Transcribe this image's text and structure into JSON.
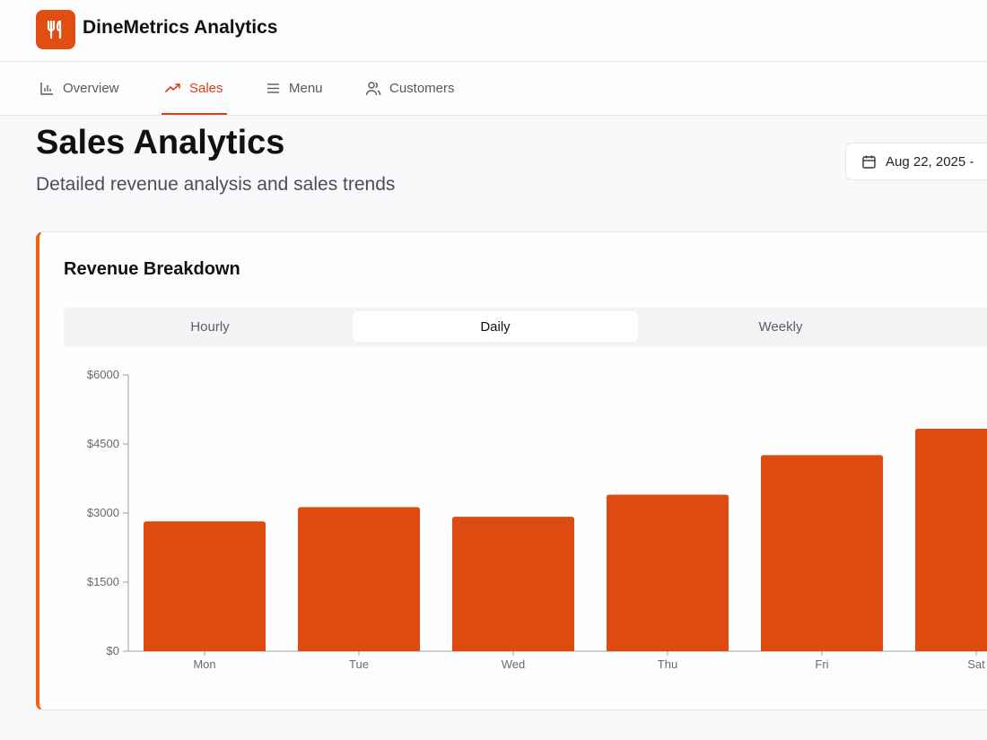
{
  "app": {
    "title": "DineMetrics Analytics",
    "logo_icon": "utensils-icon",
    "brand_color": "#e04e12"
  },
  "nav": {
    "items": [
      {
        "label": "Overview",
        "icon": "bar-chart-icon",
        "active": false
      },
      {
        "label": "Sales",
        "icon": "trending-up-icon",
        "active": true
      },
      {
        "label": "Menu",
        "icon": "menu-lines-icon",
        "active": false
      },
      {
        "label": "Customers",
        "icon": "users-icon",
        "active": false
      }
    ]
  },
  "page": {
    "title": "Sales Analytics",
    "subtitle": "Detailed revenue analysis and sales trends",
    "date_range": "Aug 22, 2025 -"
  },
  "card": {
    "title": "Revenue Breakdown",
    "tabs": [
      {
        "label": "Hourly",
        "active": false
      },
      {
        "label": "Daily",
        "active": true
      },
      {
        "label": "Weekly",
        "active": false
      }
    ]
  },
  "chart_data": {
    "type": "bar",
    "title": "Revenue Breakdown",
    "xlabel": "",
    "ylabel": "",
    "categories": [
      "Mon",
      "Tue",
      "Wed",
      "Thu",
      "Fri",
      "Sat"
    ],
    "values": [
      2820,
      3130,
      2920,
      3400,
      4260,
      4830
    ],
    "yticks": [
      "$0",
      "$1500",
      "$3000",
      "$4500",
      "$6000"
    ],
    "ylim": [
      0,
      6000
    ],
    "grid": false,
    "bar_color": "#dd4b11"
  }
}
